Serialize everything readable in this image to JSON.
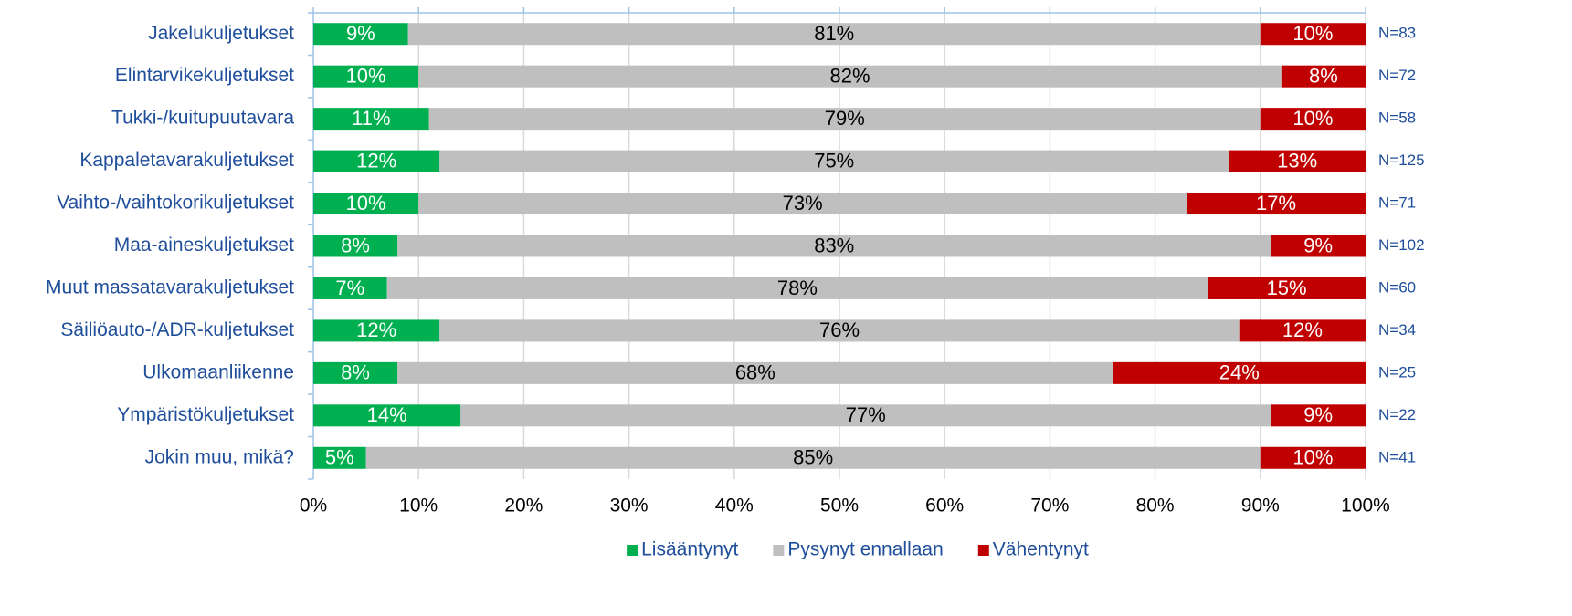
{
  "chart_data": {
    "type": "stacked_barh",
    "categories": [
      "Jakelukuljetukset",
      "Elintarvikekuljetukset",
      "Tukki-/kuitupuutavara",
      "Kappaletavarakuljetukset",
      "Vaihto-/vaihtokorikuljetukset",
      "Maa-aineskuljetukset",
      "Muut massatavarakuljetukset",
      "Säiliöauto-/ADR-kuljetukset",
      "Ulkomaanliikenne",
      "Ympäristökuljetukset",
      "Jokin muu, mikä?"
    ],
    "series": [
      {
        "name": "Lisääntynyt",
        "color": "#00b050",
        "label_color": "#ffffff",
        "values": [
          9,
          10,
          11,
          12,
          10,
          8,
          7,
          12,
          8,
          14,
          5
        ],
        "value_labels": [
          "9%",
          "10%",
          "11%",
          "12%",
          "10%",
          "8%",
          "7%",
          "12%",
          "8%",
          "14%",
          "5%"
        ]
      },
      {
        "name": "Pysynyt ennallaan",
        "color": "#bfbfbf",
        "label_color": "#000000",
        "values": [
          81,
          82,
          79,
          75,
          73,
          83,
          78,
          76,
          68,
          77,
          85
        ],
        "value_labels": [
          "81%",
          "82%",
          "79%",
          "75%",
          "73%",
          "83%",
          "78%",
          "76%",
          "68%",
          "77%",
          "85%"
        ]
      },
      {
        "name": "Vähentynyt",
        "color": "#c00000",
        "label_color": "#ffffff",
        "values": [
          10,
          8,
          10,
          13,
          17,
          9,
          15,
          12,
          24,
          9,
          10
        ],
        "value_labels": [
          "10%",
          "8%",
          "10%",
          "13%",
          "17%",
          "9%",
          "15%",
          "12%",
          "24%",
          "9%",
          "10%"
        ]
      }
    ],
    "annotations": [
      "N=83",
      "N=72",
      "N=58",
      "N=125",
      "N=71",
      "N=102",
      "N=60",
      "N=34",
      "N=25",
      "N=22",
      "N=41"
    ],
    "xlim": [
      0,
      100
    ],
    "xticks": [
      {
        "value": 0,
        "label": "0%"
      },
      {
        "value": 10,
        "label": "10%"
      },
      {
        "value": 20,
        "label": "20%"
      },
      {
        "value": 30,
        "label": "30%"
      },
      {
        "value": 40,
        "label": "40%"
      },
      {
        "value": 50,
        "label": "50%"
      },
      {
        "value": 60,
        "label": "60%"
      },
      {
        "value": 70,
        "label": "70%"
      },
      {
        "value": 80,
        "label": "80%"
      },
      {
        "value": 90,
        "label": "90%"
      },
      {
        "value": 100,
        "label": "100%"
      }
    ],
    "grid": true,
    "legend": "bottom"
  }
}
